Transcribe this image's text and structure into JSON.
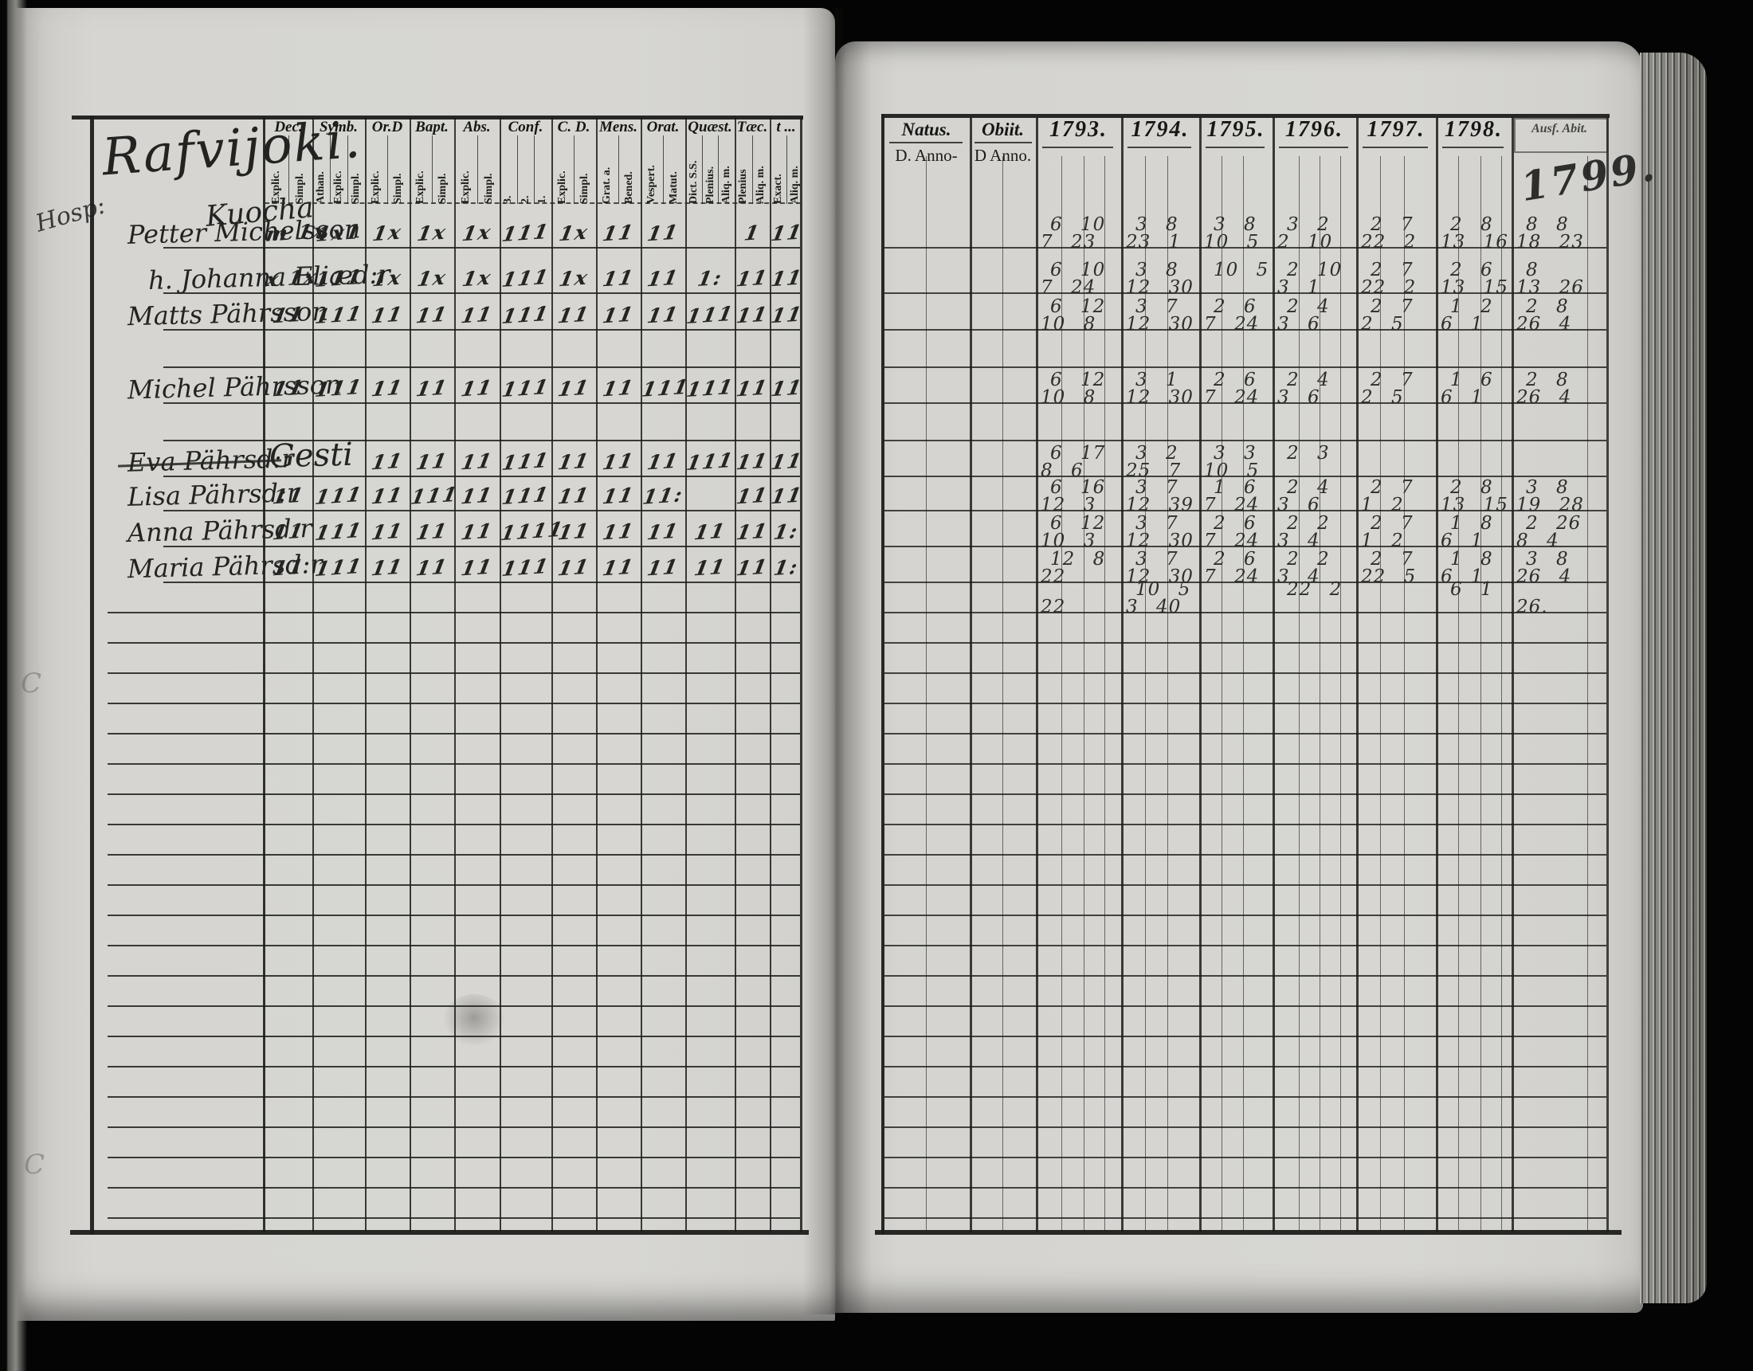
{
  "scan": {
    "kind": "parish register spread",
    "year_badge": "1799."
  },
  "page_left": {
    "title": "Rafvijoki.",
    "subtitle": "Kuocha",
    "margin_note": "Hosp:",
    "margin_smudges": [
      "C",
      "C"
    ],
    "header_groups": [
      {
        "label": "Dec.",
        "sub": [
          "Explic.",
          "Simpl."
        ]
      },
      {
        "label": "Symb.",
        "sub": [
          "Athan.",
          "Explic.",
          "Simpl."
        ]
      },
      {
        "label": "Or.D",
        "sub": [
          "Explic.",
          "Simpl."
        ]
      },
      {
        "label": "Bapt.",
        "sub": [
          "Explic.",
          "Simpl."
        ]
      },
      {
        "label": "Abs.",
        "sub": [
          "Explic.",
          "Simpl."
        ]
      },
      {
        "label": "Conf.",
        "sub": [
          "3.",
          "2.",
          "1."
        ]
      },
      {
        "label": "C. D.",
        "sub": [
          "Explic.",
          "Simpl."
        ]
      },
      {
        "label": "Mens.",
        "sub": [
          "Grat. a.",
          "Bened."
        ]
      },
      {
        "label": "Orat.",
        "sub": [
          "Vespert.",
          "Matut."
        ]
      },
      {
        "label": "Quæst.",
        "sub": [
          "Dict. S.S.",
          "Plenius.",
          "Aliq. m."
        ]
      },
      {
        "label": "Tæc.",
        "sub": [
          "Plenius",
          "Aliq. m."
        ]
      },
      {
        "label": "t ...",
        "sub": [
          "Exact.",
          "Aliq. m."
        ]
      }
    ],
    "rows": [
      {
        "name": "Petter Michelsson",
        "marks": [
          "m 1x",
          "1x1",
          "1x",
          "1x",
          "1x",
          "111",
          "1x",
          "11",
          "11",
          "",
          "1",
          "11"
        ]
      },
      {
        "name": "h. Johanna Eliæd:r",
        "marks": [
          "x 1x",
          "111",
          "1x",
          "1x",
          "1x",
          "111",
          "1x",
          "11",
          "11",
          "1:",
          "11",
          "11"
        ]
      },
      {
        "name": "Matts Pährsson",
        "marks": [
          "11",
          "111",
          "11",
          "11",
          "11",
          "111",
          "11",
          "11",
          "11",
          "111",
          "11",
          "11"
        ]
      },
      {
        "name": "Michel Pährsson",
        "marks": [
          "11",
          "111",
          "11",
          "11",
          "11",
          "111",
          "11",
          "11",
          "111",
          "111",
          "11",
          "11"
        ]
      },
      {
        "name": "Eva Pährsd:r",
        "struck": true,
        "annotation": "Gesti",
        "marks": [
          "",
          "",
          "11",
          "11",
          "11",
          "111",
          "11",
          "11",
          "11",
          "111",
          "11",
          "11"
        ]
      },
      {
        "name": "Lisa Pährsd:r",
        "marks": [
          "11",
          "111",
          "11",
          "111",
          "11",
          "111",
          "11",
          "11",
          "11:",
          "",
          "11",
          "11"
        ]
      },
      {
        "name": "Anna Pährsd:r",
        "marks": [
          "11",
          "111",
          "11",
          "11",
          "11",
          "1111",
          "11",
          "11",
          "11",
          "11",
          "11",
          "1:"
        ]
      },
      {
        "name": "Maria Pährsd:r",
        "marks": [
          "11",
          "111",
          "11",
          "11",
          "11",
          "111",
          "11",
          "11",
          "11",
          "11",
          "11",
          "1:"
        ]
      }
    ]
  },
  "page_right": {
    "natus_label": "Natus.",
    "natus_sub": "D. Anno-",
    "obiit_label": "Obiit.",
    "obiit_sub": "D Anno.",
    "years": [
      "1793.",
      "1794.",
      "1795.",
      "1796.",
      "1797.",
      "1798."
    ],
    "ausf_label": "Ausf. Abit.",
    "ausf_year": "1799.",
    "rows": [
      {
        "cells": [
          [
            "6 10",
            "7 23"
          ],
          [
            "3 8",
            "23 1"
          ],
          [
            "3 8",
            "10 5"
          ],
          [
            "3 2",
            "2 10"
          ],
          [
            "2 7",
            "22 2"
          ],
          [
            "2 8",
            "13 16"
          ],
          [
            "8 8",
            "18 23"
          ]
        ]
      },
      {
        "cells": [
          [
            "6 10",
            "7 24"
          ],
          [
            "3 8",
            "12 30"
          ],
          [
            "10 5",
            ""
          ],
          [
            "2 10",
            "3 1"
          ],
          [
            "2 7",
            "22 2"
          ],
          [
            "2 6",
            "13 15"
          ],
          [
            "8",
            "13 26"
          ]
        ]
      },
      {
        "cells": [
          [
            "6 12",
            "10 8"
          ],
          [
            "3 7",
            "12 30"
          ],
          [
            "2 6",
            "7 24"
          ],
          [
            "2 4",
            "3 6"
          ],
          [
            "2 7",
            "2 5"
          ],
          [
            "1 2",
            "6 1"
          ],
          [
            "2 8",
            "26 4"
          ]
        ]
      },
      {
        "cells": [
          [
            "6 12",
            "10 8"
          ],
          [
            "3 1",
            "12 30"
          ],
          [
            "2 6",
            "7 24"
          ],
          [
            "2 4",
            "3 6"
          ],
          [
            "2 7",
            "2 5"
          ],
          [
            "1 6",
            "6 1"
          ],
          [
            "2 8",
            "26 4"
          ]
        ]
      },
      {
        "cells": [
          [
            "6 17",
            "8 6"
          ],
          [
            "3 2",
            "25 7"
          ],
          [
            "3 3",
            "10 5"
          ],
          [
            "2 3",
            ""
          ],
          [
            "",
            ""
          ],
          [
            "",
            ""
          ],
          [
            "",
            ""
          ]
        ]
      },
      {
        "cells": [
          [
            "6 16",
            "12 3"
          ],
          [
            "3 7",
            "12 39"
          ],
          [
            "1 6",
            "7 24"
          ],
          [
            "2 4",
            "3 6"
          ],
          [
            "2 7",
            "1 2"
          ],
          [
            "2 8",
            "13 15"
          ],
          [
            "3 8",
            "19 28"
          ]
        ]
      },
      {
        "cells": [
          [
            "6 12",
            "10 3"
          ],
          [
            "3 7",
            "12 30"
          ],
          [
            "2 6",
            "7 24"
          ],
          [
            "2 2",
            "3 4"
          ],
          [
            "2 7",
            "1 2"
          ],
          [
            "1 8",
            "6 1"
          ],
          [
            "2 26",
            "8 4"
          ]
        ]
      },
      {
        "cells": [
          [
            "12 8",
            "22"
          ],
          [
            "3 7",
            "12 30"
          ],
          [
            "2 6",
            "7 24"
          ],
          [
            "2 2",
            "3 4"
          ],
          [
            "2 7",
            "22 5"
          ],
          [
            "1 8",
            "6 1"
          ],
          [
            "3 8",
            "26 4"
          ]
        ]
      },
      {
        "cells": [
          [
            "",
            "22"
          ],
          [
            "10 5",
            "3 40"
          ],
          [
            "",
            ""
          ],
          [
            "22 2",
            ""
          ],
          [
            "",
            ""
          ],
          [
            "6 1",
            ""
          ],
          [
            "",
            "26."
          ]
        ]
      }
    ]
  }
}
